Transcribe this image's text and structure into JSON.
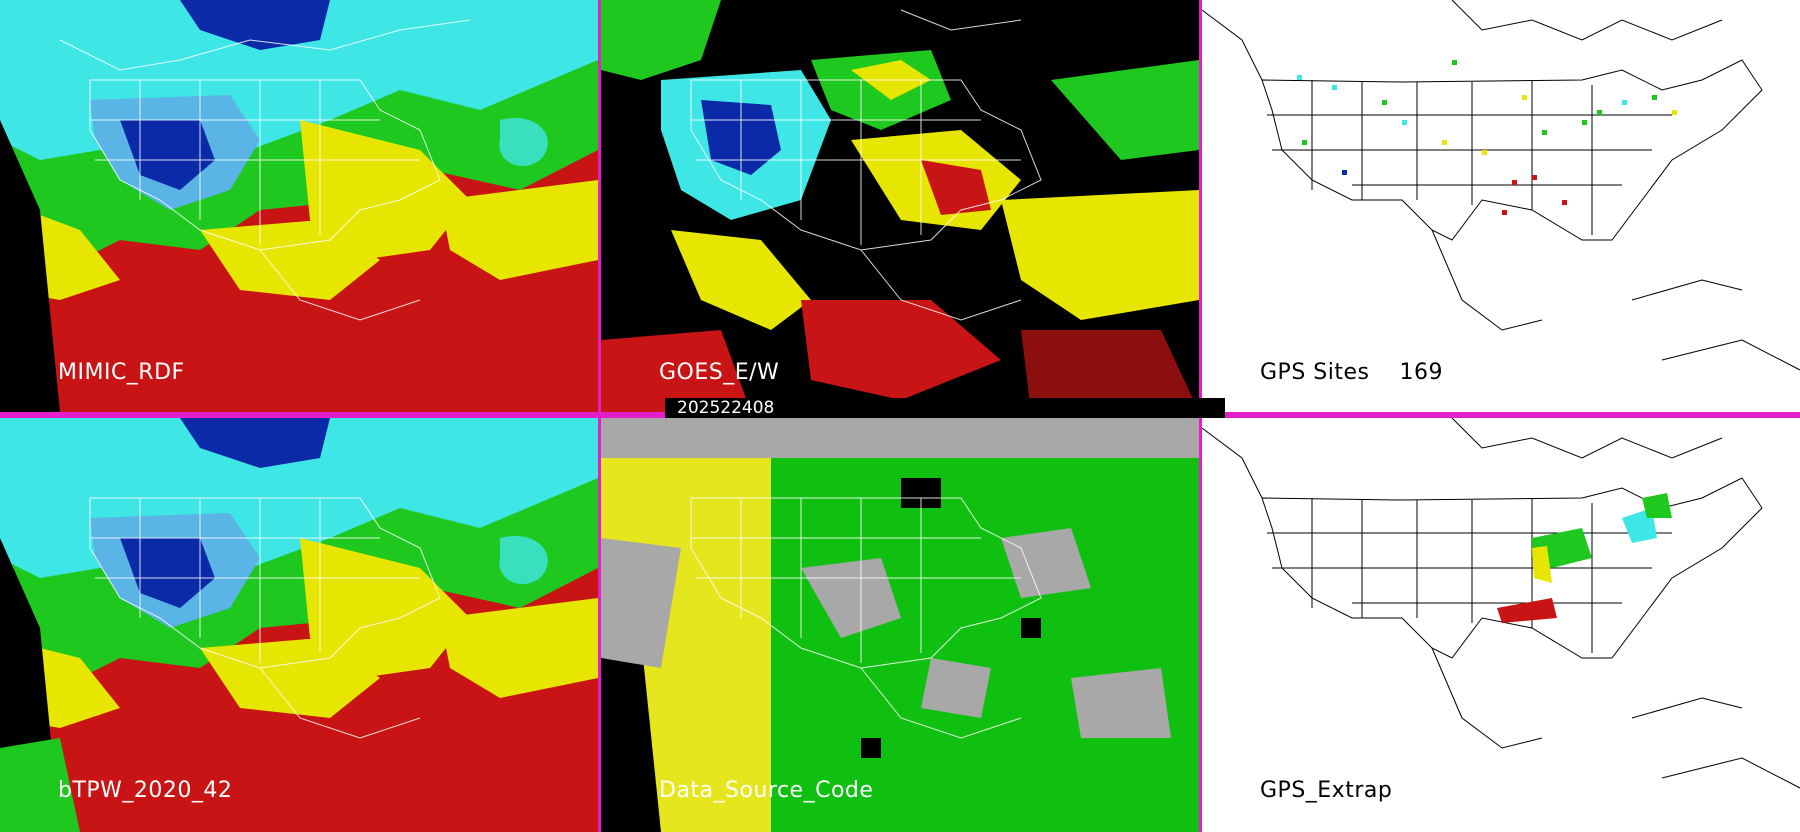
{
  "panels": {
    "top_left": {
      "label": "MIMIC_RDF"
    },
    "top_mid": {
      "label": "GOES_E/W"
    },
    "top_right": {
      "label": "GPS Sites    169"
    },
    "bot_left": {
      "label": "bTPW_2020_42"
    },
    "bot_mid": {
      "label": "Data_Source_Code"
    },
    "bot_right": {
      "label": "GPS_Extrap"
    }
  },
  "timestamp": "202522408",
  "colors": {
    "separator": "#e51ecb",
    "tpw_blue": "#0a2aa8",
    "tpw_cyan": "#3fe6e6",
    "tpw_green": "#1ec81e",
    "tpw_yellow": "#e6e600",
    "tpw_red": "#c81414",
    "source_grey": "#a8a8a8",
    "source_green": "#10c010",
    "source_yellow": "#e6e61e"
  }
}
